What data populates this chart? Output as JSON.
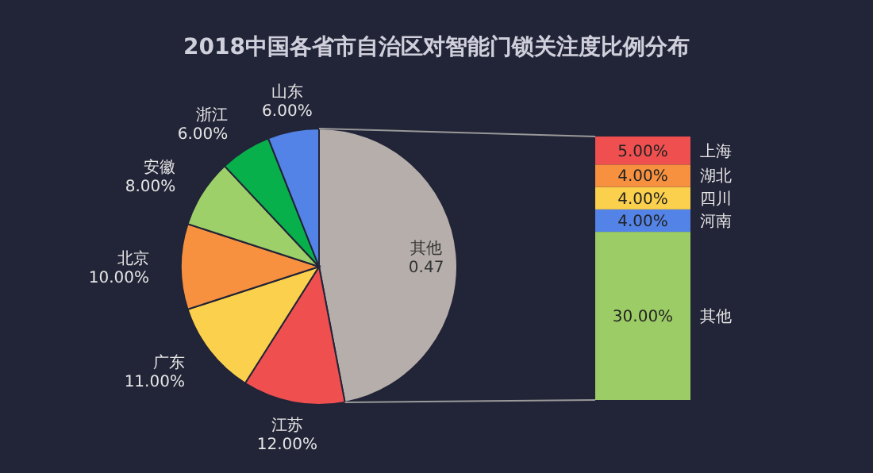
{
  "chart_data": [
    {
      "type": "pie",
      "title": "2018中国各省市自治区对智能门锁关注度比例分布",
      "categories": [
        "其他",
        "江苏",
        "广东",
        "北京",
        "安徽",
        "浙江",
        "山东"
      ],
      "values": [
        0.47,
        0.12,
        0.11,
        0.1,
        0.08,
        0.06,
        0.06
      ],
      "value_labels": [
        "0.47",
        "12.00%",
        "11.00%",
        "10.00%",
        "8.00%",
        "6.00%",
        "6.00%"
      ],
      "colors": [
        "#b5aeab",
        "#ef4f4f",
        "#fbd04c",
        "#f7913f",
        "#9ed06a",
        "#08b04c",
        "#5383e6"
      ]
    },
    {
      "type": "bar",
      "stacked": true,
      "categories": [
        null
      ],
      "series": [
        {
          "name": "其他",
          "color": "#9ccc65",
          "values": [
            30
          ],
          "value_labels": [
            "30.00%"
          ]
        },
        {
          "name": "河南",
          "color": "#5383e6",
          "values": [
            4
          ],
          "value_labels": [
            "4.00%"
          ]
        },
        {
          "name": "四川",
          "color": "#fbd04c",
          "values": [
            4
          ],
          "value_labels": [
            "4.00%"
          ]
        },
        {
          "name": "湖北",
          "color": "#f7913f",
          "values": [
            4
          ],
          "value_labels": [
            "4.00%"
          ]
        },
        {
          "name": "上海",
          "color": "#ef4f4f",
          "values": [
            5
          ],
          "value_labels": [
            "5.00%"
          ]
        }
      ]
    }
  ]
}
